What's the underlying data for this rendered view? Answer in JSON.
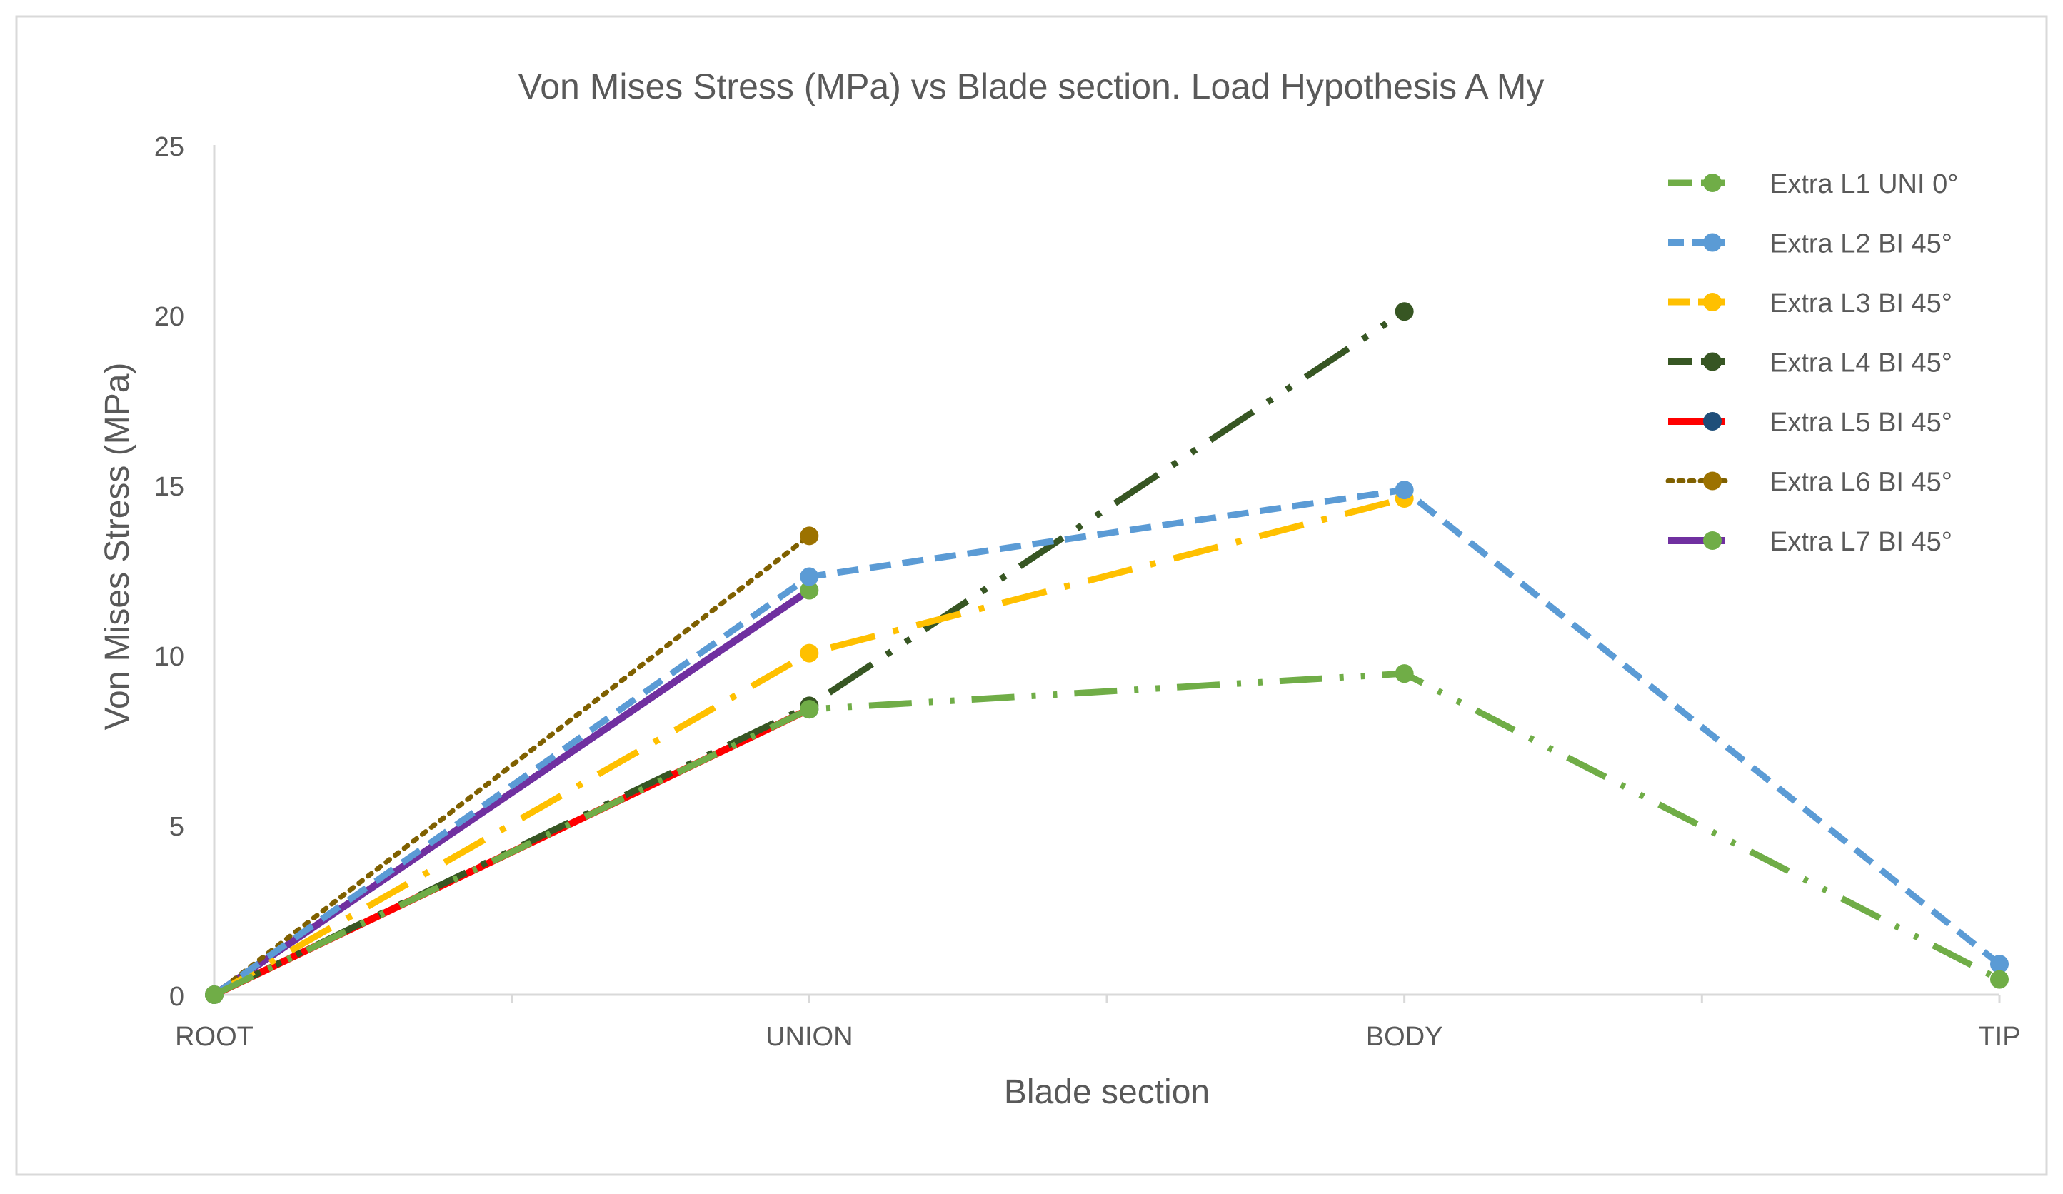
{
  "chart_data": {
    "type": "line",
    "title": "Von Mises Stress (MPa) vs Blade section. Load Hypothesis A My",
    "xlabel": "Blade section",
    "ylabel": "Von Mises Stress (MPa)",
    "categories": [
      "ROOT",
      "UNION",
      "BODY",
      "TIP"
    ],
    "ylim": [
      0,
      25
    ],
    "yticks": [
      0,
      5,
      10,
      15,
      20,
      25
    ],
    "grid": false,
    "legend_position": "top-right",
    "series": [
      {
        "name": "Extra L1 UNI 0°",
        "color": "#70ad47",
        "dash": "dash-dot-dot",
        "values": [
          0,
          8.4,
          9.45,
          0.45
        ]
      },
      {
        "name": "Extra L2 BI 45°",
        "color": "#5b9bd5",
        "dash": "dash",
        "values": [
          0,
          12.3,
          14.85,
          0.9
        ]
      },
      {
        "name": "Extra L3 BI 45°",
        "color": "#ffc000",
        "dash": "long-dash-dot",
        "values": [
          0,
          10.05,
          14.6,
          null
        ]
      },
      {
        "name": "Extra L4 BI 45°",
        "color": "#375623",
        "dash": "long-dash-dot-dot",
        "values": [
          0,
          8.5,
          20.1,
          null
        ]
      },
      {
        "name": "Extra L5 BI 45°",
        "color": "#ff0000",
        "dash": "solid",
        "marker_color": "#1f4e79",
        "values": [
          0,
          8.4,
          null,
          null
        ]
      },
      {
        "name": "Extra L6 BI 45°",
        "color": "#7f6000",
        "dash": "dot",
        "marker_color": "#9c7200",
        "values": [
          0,
          13.5,
          null,
          null
        ]
      },
      {
        "name": "Extra L7 BI 45°",
        "color": "#7030a0",
        "dash": "solid",
        "marker_color": "#70ad47",
        "values": [
          0,
          11.9,
          null,
          null
        ]
      }
    ]
  }
}
